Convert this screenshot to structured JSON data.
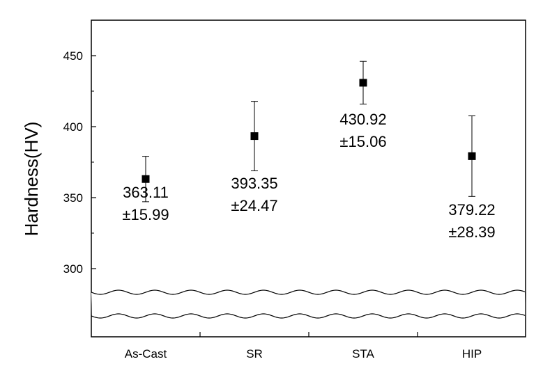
{
  "chart_data": {
    "type": "scatter",
    "title": "",
    "xlabel": "",
    "ylabel": "Hardness(HV)",
    "categories": [
      "As-Cast",
      "SR",
      "STA",
      "HIP"
    ],
    "values": [
      363.11,
      393.35,
      430.92,
      379.22
    ],
    "errors": [
      15.99,
      24.47,
      15.06,
      28.39
    ],
    "data_labels": [
      {
        "value": "363.11",
        "error": "±15.99"
      },
      {
        "value": "393.35",
        "error": "±24.47"
      },
      {
        "value": "430.92",
        "error": "±15.06"
      },
      {
        "value": "379.22",
        "error": "±28.39"
      }
    ],
    "y_ticks": [
      "300",
      "350",
      "400",
      "450"
    ],
    "ylim": [
      300,
      450
    ],
    "axis_break": true,
    "grid": false,
    "legend": "none",
    "marker": "square",
    "marker_color": "#000000"
  }
}
